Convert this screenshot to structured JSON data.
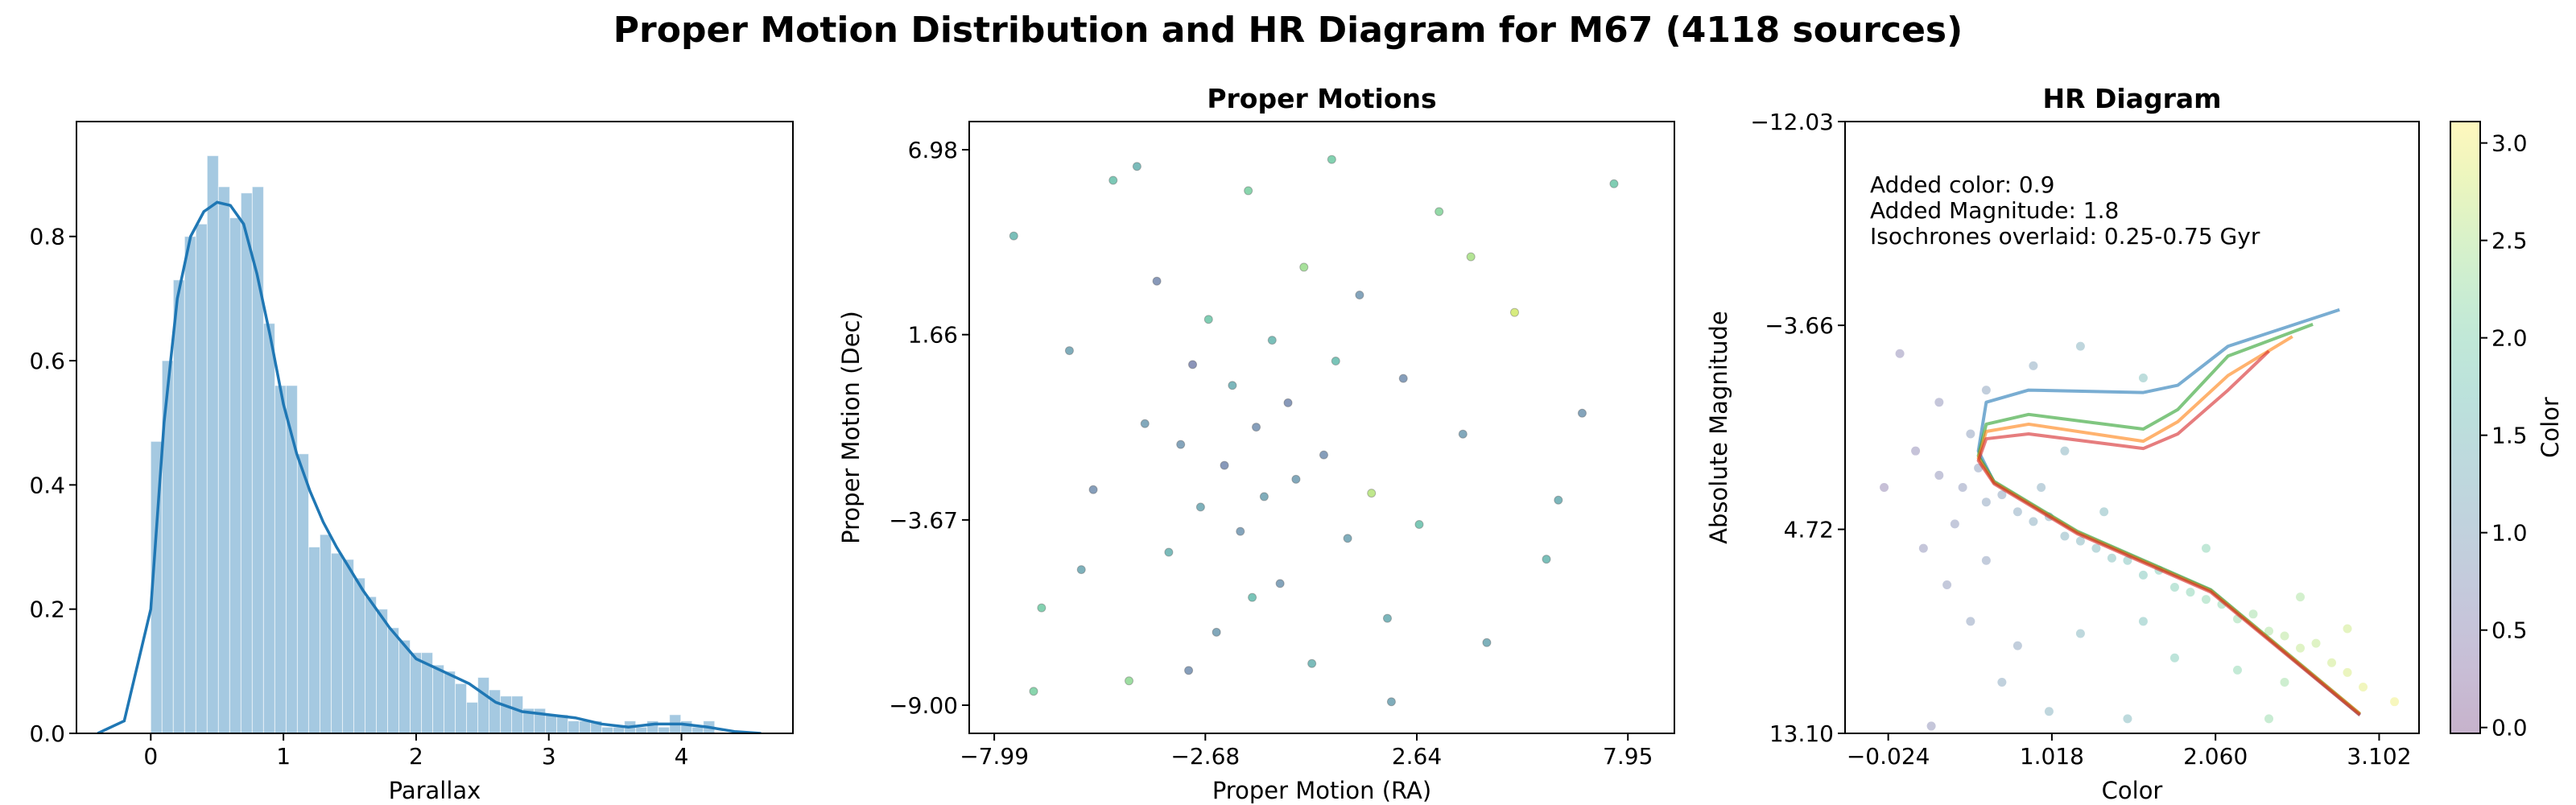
{
  "title": "Proper Motion Distribution and HR Diagram for M67 (4118 sources)",
  "chart_data": [
    {
      "type": "histogram",
      "xlabel": "Parallax",
      "bins": [
        0,
        0.085,
        0.17,
        0.255,
        0.34,
        0.425,
        0.51,
        0.595,
        0.68,
        0.765,
        0.85,
        0.935,
        1.02,
        1.105,
        1.19,
        1.275,
        1.36,
        1.445,
        1.53,
        1.615,
        1.7,
        1.785,
        1.87,
        1.955,
        2.04,
        2.125,
        2.21,
        2.295,
        2.38,
        2.465,
        2.55,
        2.635,
        2.72,
        2.805,
        2.89,
        2.975,
        3.06,
        3.145,
        3.23,
        3.315,
        3.4,
        3.485,
        3.57,
        3.655,
        3.74,
        3.825,
        3.91,
        3.995,
        4.08,
        4.165,
        4.25
      ],
      "counts": [
        0.47,
        0.6,
        0.73,
        0.8,
        0.82,
        0.93,
        0.88,
        0.83,
        0.87,
        0.88,
        0.66,
        0.56,
        0.56,
        0.45,
        0.3,
        0.32,
        0.29,
        0.28,
        0.25,
        0.22,
        0.2,
        0.17,
        0.15,
        0.13,
        0.13,
        0.11,
        0.1,
        0.08,
        0.05,
        0.09,
        0.07,
        0.06,
        0.06,
        0.04,
        0.04,
        0.03,
        0.03,
        0.02,
        0.02,
        0.02,
        0.01,
        0.01,
        0.02,
        0.01,
        0.02,
        0.01,
        0.03,
        0.02,
        0.01,
        0.02
      ],
      "bar_color": "#1f77b4",
      "bar_alpha": 0.4,
      "density": {
        "color": "#1f77b4",
        "x": [
          -0.4,
          -0.2,
          0,
          0.1,
          0.2,
          0.3,
          0.4,
          0.5,
          0.6,
          0.7,
          0.8,
          0.9,
          1.0,
          1.1,
          1.2,
          1.3,
          1.4,
          1.6,
          1.8,
          2.0,
          2.2,
          2.4,
          2.6,
          2.8,
          3.0,
          3.2,
          3.4,
          3.6,
          3.8,
          4.0,
          4.2,
          4.4,
          4.6
        ],
        "values": [
          0,
          0.02,
          0.2,
          0.5,
          0.7,
          0.8,
          0.84,
          0.855,
          0.85,
          0.82,
          0.74,
          0.64,
          0.53,
          0.45,
          0.39,
          0.34,
          0.3,
          0.23,
          0.17,
          0.12,
          0.1,
          0.08,
          0.05,
          0.035,
          0.03,
          0.025,
          0.015,
          0.01,
          0.015,
          0.015,
          0.01,
          0.003,
          0
        ]
      },
      "xlim": [
        -0.56,
        4.84
      ],
      "ylim": [
        0,
        0.985
      ],
      "xticks": [
        0,
        1,
        2,
        3,
        4
      ],
      "yticks": [
        {
          "value": 0,
          "label": "0.0"
        },
        0.2,
        0.4,
        0.6,
        0.8
      ]
    },
    {
      "type": "scatter",
      "title": "Proper Motions",
      "xlabel": "Proper Motion (RA)",
      "ylabel": "Proper Motion (Dec)",
      "cmap": "viridis",
      "alpha": 0.6,
      "x": [
        -7.5,
        -6.8,
        -6.1,
        -5.5,
        -5.0,
        -4.6,
        -4.2,
        -3.9,
        -3.6,
        -3.3,
        -3.0,
        -2.8,
        -2.6,
        -2.4,
        -2.2,
        -2.0,
        -1.8,
        -1.6,
        -1.4,
        -1.2,
        -1.0,
        -0.8,
        -0.6,
        -0.4,
        -0.2,
        0.0,
        0.3,
        0.6,
        0.9,
        1.2,
        1.5,
        1.9,
        2.3,
        2.7,
        3.2,
        3.8,
        4.4,
        5.1,
        5.9,
        6.8,
        7.6,
        -7.0,
        -5.8,
        -4.4,
        -3.1,
        -1.5,
        0.5,
        2.0,
        4.0,
        6.2
      ],
      "values": [
        4.5,
        -6.2,
        1.2,
        -2.8,
        6.1,
        -8.3,
        -0.9,
        3.2,
        -4.6,
        -1.5,
        0.8,
        -3.3,
        2.1,
        -6.9,
        -2.1,
        0.2,
        -4.0,
        5.8,
        -1.0,
        -3.0,
        1.5,
        -5.5,
        -0.3,
        -2.5,
        3.6,
        -7.8,
        -1.8,
        0.9,
        -4.2,
        2.8,
        -2.9,
        -6.5,
        0.4,
        -3.8,
        5.2,
        -1.2,
        -7.2,
        2.3,
        -4.8,
        -0.6,
        6.0,
        -8.6,
        -5.1,
        6.5,
        -8.0,
        -5.9,
        6.7,
        -8.9,
        3.9,
        -3.1
      ],
      "c": [
        1.6,
        2.0,
        1.2,
        0.9,
        1.8,
        2.3,
        1.1,
        0.8,
        1.5,
        1.0,
        0.7,
        1.3,
        1.9,
        1.1,
        0.8,
        1.4,
        1.0,
        2.1,
        0.9,
        1.2,
        1.6,
        1.0,
        0.8,
        1.1,
        2.4,
        1.5,
        0.9,
        1.7,
        1.2,
        1.0,
        2.6,
        1.4,
        0.9,
        1.8,
        2.2,
        1.1,
        1.3,
        2.8,
        1.6,
        1.0,
        1.9,
        2.1,
        1.3,
        1.5,
        0.9,
        1.7,
        2.0,
        1.2,
        2.5,
        1.4
      ],
      "xlim": [
        -8.62,
        9.12
      ],
      "ylim": [
        -9.81,
        7.79
      ],
      "xticks": [
        {
          "value": -7.99,
          "label": "−7.99"
        },
        {
          "value": -2.68,
          "label": "−2.68"
        },
        2.64,
        7.95
      ],
      "yticks": [
        {
          "value": -9.0,
          "label": "−9.00"
        },
        {
          "value": -3.67,
          "label": "−3.67"
        },
        1.66,
        6.98
      ]
    },
    {
      "type": "scatter",
      "title": "HR Diagram",
      "xlabel": "Color",
      "ylabel": "Absolute Magnitude",
      "annotations": [
        "Added color: 0.9",
        "Added Magnitude: 1.8",
        "Isochrones overlaid: 0.25-0.75 Gyr"
      ],
      "cmap": "viridis",
      "alpha": 0.3,
      "x": [
        0.3,
        0.45,
        0.55,
        0.6,
        0.7,
        0.8,
        0.9,
        1.0,
        1.1,
        1.2,
        1.3,
        1.4,
        1.5,
        1.6,
        1.7,
        1.8,
        1.9,
        2.0,
        2.1,
        2.2,
        2.3,
        2.4,
        2.5,
        2.6,
        2.7,
        2.8,
        2.9,
        3.0,
        0.2,
        0.35,
        0.5,
        0.6,
        0.4,
        0.8,
        0.7,
        1.0,
        1.5,
        1.2,
        1.6,
        2.2,
        2.5,
        1.8,
        2.6,
        2.9,
        3.2,
        0.5,
        0.6,
        0.9,
        1.2,
        0.3,
        1.6,
        0.05,
        0.15,
        -0.05,
        1.1,
        0.95,
        1.35,
        2.0,
        0.25,
        2.4
      ],
      "values": [
        2.5,
        3.0,
        2.2,
        3.6,
        3.3,
        4.0,
        4.4,
        4.2,
        5.0,
        5.2,
        5.5,
        5.9,
        6.0,
        6.6,
        6.4,
        7.1,
        7.3,
        7.6,
        7.8,
        8.4,
        8.2,
        8.9,
        9.1,
        9.6,
        9.4,
        10.2,
        10.6,
        11.2,
        5.5,
        7.0,
        8.5,
        6.0,
        4.5,
        9.5,
        11.0,
        12.2,
        12.5,
        9.0,
        8.5,
        10.5,
        11.0,
        10.0,
        7.5,
        8.8,
        11.8,
        0.8,
        -1.0,
        -2.0,
        -2.8,
        -0.5,
        -1.5,
        -2.5,
        1.5,
        3.0,
        1.5,
        3.0,
        4.0,
        5.5,
        12.8,
        12.5
      ],
      "c": [
        0.6,
        0.7,
        0.8,
        0.9,
        0.9,
        1.0,
        1.1,
        1.1,
        1.2,
        1.3,
        1.4,
        1.5,
        1.6,
        1.7,
        1.8,
        1.9,
        2.0,
        2.1,
        2.1,
        2.2,
        2.3,
        2.4,
        2.5,
        2.6,
        2.6,
        2.7,
        2.8,
        2.9,
        0.6,
        0.7,
        0.8,
        0.8,
        0.7,
        0.9,
        1.0,
        1.2,
        1.4,
        1.3,
        1.6,
        2.1,
        2.3,
        1.8,
        2.4,
        2.7,
        3.0,
        0.8,
        0.9,
        1.0,
        1.2,
        0.6,
        1.5,
        0.5,
        0.5,
        0.4,
        1.2,
        1.1,
        1.4,
        2.0,
        0.6,
        2.2
      ],
      "isochrones": [
        {
          "color": "#1f77b4",
          "x": [
            2.98,
            2.03,
            1.18,
            0.65,
            0.55,
            0.6,
            0.87,
            1.6,
            1.82,
            2.14,
            2.85
          ],
          "values": [
            12.35,
            7.23,
            4.84,
            2.79,
            1.5,
            -0.5,
            -1.0,
            -0.9,
            -1.2,
            -2.8,
            -4.3
          ]
        },
        {
          "color": "#2ca02c",
          "x": [
            2.98,
            2.03,
            1.18,
            0.65,
            0.55,
            0.6,
            0.87,
            1.6,
            1.82,
            2.14,
            2.68
          ],
          "values": [
            12.3,
            7.2,
            4.8,
            2.75,
            1.7,
            0.4,
            0.0,
            0.6,
            -0.2,
            -2.4,
            -3.7
          ]
        },
        {
          "color": "#ff7f0e",
          "x": [
            2.98,
            2.03,
            1.18,
            0.65,
            0.55,
            0.6,
            0.87,
            1.6,
            1.82,
            2.14,
            2.55
          ],
          "values": [
            12.3,
            7.25,
            4.85,
            2.8,
            1.8,
            0.7,
            0.4,
            1.1,
            0.3,
            -1.6,
            -3.2
          ]
        },
        {
          "color": "#d62728",
          "x": [
            2.98,
            2.03,
            1.18,
            0.65,
            0.55,
            0.6,
            0.87,
            1.6,
            1.82,
            2.14,
            2.4
          ],
          "values": [
            12.35,
            7.3,
            4.9,
            2.85,
            1.9,
            1.0,
            0.8,
            1.4,
            0.8,
            -1.0,
            -2.6
          ]
        }
      ],
      "xlim": [
        -0.299,
        3.356
      ],
      "ylim": [
        13.1,
        -12.03
      ],
      "xticks": [
        {
          "value": -0.024,
          "label": "−0.024"
        },
        1.018,
        {
          "value": 2.06,
          "label": "2.060"
        },
        3.102
      ],
      "yticks": [
        {
          "value": -12.03,
          "label": "−12.03"
        },
        {
          "value": -3.66,
          "label": "−3.66"
        },
        4.72,
        {
          "value": 13.1,
          "label": "13.10"
        }
      ],
      "colorbar": {
        "label": "Color",
        "lim": [
          -0.03,
          3.11
        ],
        "ticks": [
          {
            "value": 0,
            "label": "0.0"
          },
          0.5,
          {
            "value": 1,
            "label": "1.0"
          },
          1.5,
          {
            "value": 2,
            "label": "2.0"
          },
          2.5,
          {
            "value": 3,
            "label": "3.0"
          }
        ]
      }
    }
  ]
}
